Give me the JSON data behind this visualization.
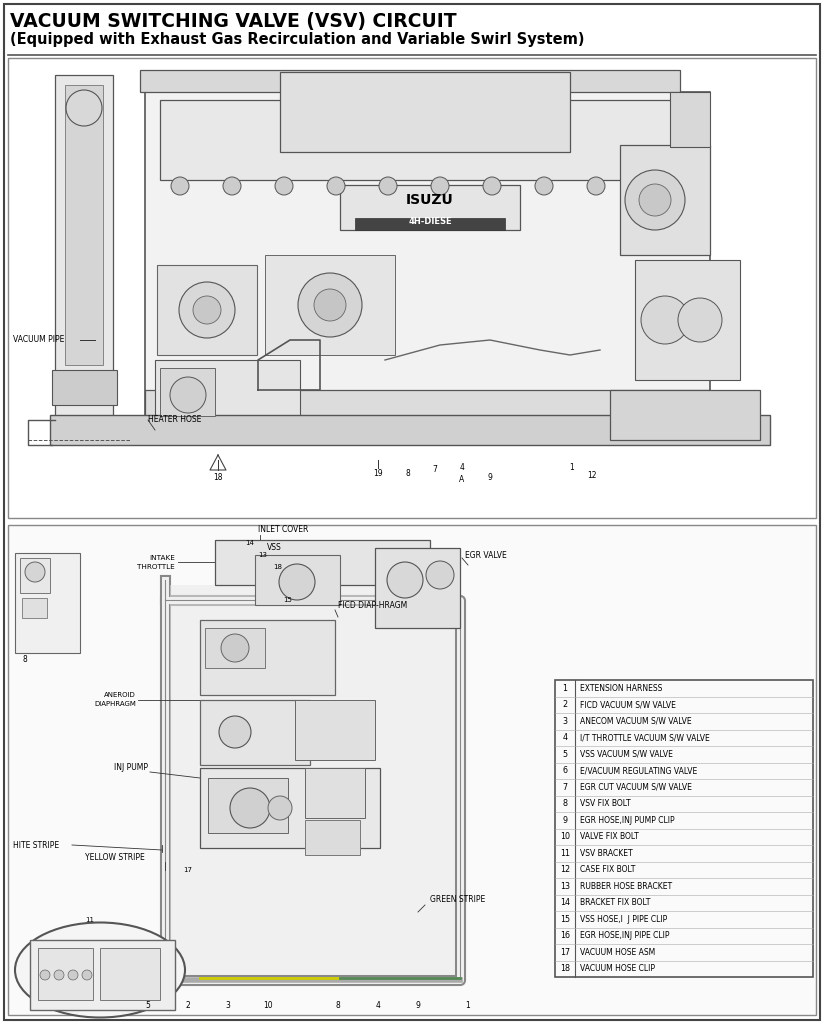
{
  "title_line1": "VACUUM SWITCHING VALVE (VSV) CIRCUIT",
  "title_line2": "(Equipped with Exhaust Gas Recirculation and Variable Swirl System)",
  "bg_color": "#ffffff",
  "legend_items": [
    [
      1,
      "EXTENSION HARNESS"
    ],
    [
      2,
      "FICD VACUUM S/W VALVE"
    ],
    [
      3,
      "ANECOM VACUUM S/W VALVE"
    ],
    [
      4,
      "I/T THROTTLE VACUUM S/W VALVE"
    ],
    [
      5,
      "VSS VACUUM S/W VALVE"
    ],
    [
      6,
      "E/VACUUM REGULATING VALVE"
    ],
    [
      7,
      "EGR CUT VACUUM S/W VALVE"
    ],
    [
      8,
      "VSV FIX BOLT"
    ],
    [
      9,
      "EGR HOSE,INJ PUMP CLIP"
    ],
    [
      10,
      "VALVE FIX BOLT"
    ],
    [
      11,
      "VSV BRACKET"
    ],
    [
      12,
      "CASE FIX BOLT"
    ],
    [
      13,
      "RUBBER HOSE BRACKET"
    ],
    [
      14,
      "BRACKET FIX BOLT"
    ],
    [
      15,
      "VSS HOSE,I  J PIPE CLIP"
    ],
    [
      16,
      "EGR HOSE,INJ PIPE CLIP"
    ],
    [
      17,
      "VACUUM HOSE ASM"
    ],
    [
      18,
      "VACUUM HOSE CLIP"
    ]
  ],
  "figsize": [
    8.24,
    10.24
  ],
  "dpi": 100
}
